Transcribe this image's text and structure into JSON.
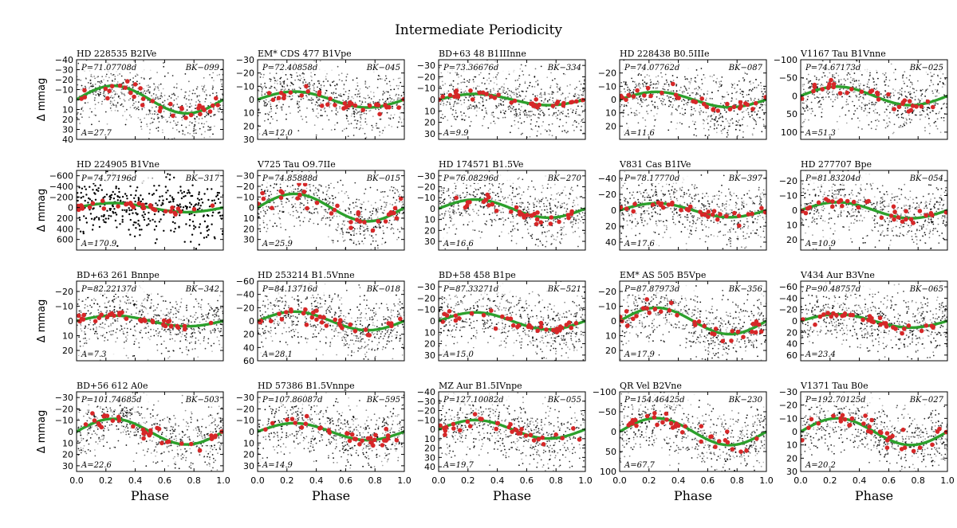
{
  "chart_data": {
    "type": "scatter",
    "title": "Intermediate Periodicity",
    "xlabel": "Phase",
    "ylabel": "Δ mmag",
    "xlim": [
      0.0,
      1.0
    ],
    "x_ticks": [
      "0.0",
      "0.2",
      "0.4",
      "0.6",
      "0.8",
      "1.0"
    ],
    "y_inverted": true,
    "grid": false,
    "colors": {
      "points": "#000000",
      "binned": "#d62728",
      "fit": "#2ca02c"
    },
    "panels": [
      {
        "name": "HD 228535  B2IVe",
        "period": "P=71.07708d",
        "bk": "BK−099",
        "amplitude_label": "A=27.7",
        "amplitude": 27.7,
        "ylim": [
          -40,
          40
        ],
        "yticks": [
          "−40",
          "−30",
          "−20",
          "−10",
          "0",
          "10",
          "20",
          "30",
          "40"
        ],
        "tick_values": [
          -40,
          -30,
          -20,
          -10,
          0,
          10,
          20,
          30,
          40
        ]
      },
      {
        "name": "EM* CDS 477  B1Vpe",
        "period": "P=72.40858d",
        "bk": "BK−045",
        "amplitude_label": "A=12.0",
        "amplitude": 12.0,
        "ylim": [
          -30,
          30
        ],
        "yticks": [
          "−30",
          "−20",
          "−10",
          "0",
          "10",
          "20",
          "30"
        ],
        "tick_values": [
          -30,
          -20,
          -10,
          0,
          10,
          20,
          30
        ]
      },
      {
        "name": "BD+63 48  B1IIInne",
        "period": "P=73.36676d",
        "bk": "BK−334",
        "amplitude_label": "A=9.9",
        "amplitude": 9.9,
        "ylim": [
          -35,
          35
        ],
        "yticks": [
          "−30",
          "−20",
          "−10",
          "0",
          "10",
          "20",
          "30"
        ],
        "tick_values": [
          -30,
          -20,
          -10,
          0,
          10,
          20,
          30
        ]
      },
      {
        "name": "HD 228438  B0.5IIIe",
        "period": "P=74.07762d",
        "bk": "BK−087",
        "amplitude_label": "A=11.6",
        "amplitude": 11.6,
        "ylim": [
          -30,
          30
        ],
        "yticks": [
          "−20",
          "−10",
          "0",
          "10",
          "20"
        ],
        "tick_values": [
          -20,
          -10,
          0,
          10,
          20
        ]
      },
      {
        "name": "V1167 Tau  B1Vnne",
        "period": "P=74.67173d",
        "bk": "BK−025",
        "amplitude_label": "A=51.3",
        "amplitude": 51.3,
        "ylim": [
          -100,
          120
        ],
        "yticks": [
          "−100",
          "−50",
          "0",
          "50",
          "100"
        ],
        "tick_values": [
          -100,
          -50,
          0,
          50,
          100
        ]
      },
      {
        "name": "HD 224905  B1Vne",
        "period": "P=74.77196d",
        "bk": "BK−317",
        "amplitude_label": "A=170.9",
        "amplitude": 170.9,
        "ylim": [
          -700,
          800
        ],
        "yticks": [
          "−600",
          "−400",
          "−200",
          "0",
          "200",
          "400",
          "600"
        ],
        "tick_values": [
          -600,
          -400,
          -200,
          0,
          200,
          400,
          600
        ]
      },
      {
        "name": "V725 Tau  O9.7IIe",
        "period": "P=74.85888d",
        "bk": "BK−015",
        "amplitude_label": "A=25.9",
        "amplitude": 25.9,
        "ylim": [
          -35,
          40
        ],
        "yticks": [
          "−30",
          "−20",
          "−10",
          "0",
          "10",
          "20",
          "30"
        ],
        "tick_values": [
          -30,
          -20,
          -10,
          0,
          10,
          20,
          30
        ]
      },
      {
        "name": "HD 174571  B1.5Ve",
        "period": "P=76.08296d",
        "bk": "BK−270",
        "amplitude_label": "A=16.6",
        "amplitude": 16.6,
        "ylim": [
          -35,
          38
        ],
        "yticks": [
          "−30",
          "−20",
          "−10",
          "0",
          "10",
          "20",
          "30"
        ],
        "tick_values": [
          -30,
          -20,
          -10,
          0,
          10,
          20,
          30
        ]
      },
      {
        "name": "V831 Cas  B1IVe",
        "period": "P=78.17770d",
        "bk": "BK−397",
        "amplitude_label": "A=17.6",
        "amplitude": 17.6,
        "ylim": [
          -50,
          50
        ],
        "yticks": [
          "−40",
          "−20",
          "0",
          "20",
          "40"
        ],
        "tick_values": [
          -40,
          -20,
          0,
          20,
          40
        ]
      },
      {
        "name": "HD 277707  Bpe",
        "period": "P=81.83204d",
        "bk": "BK−054",
        "amplitude_label": "A=10.9",
        "amplitude": 10.9,
        "ylim": [
          -27,
          27
        ],
        "yticks": [
          "−20",
          "−10",
          "0",
          "10",
          "20"
        ],
        "tick_values": [
          -20,
          -10,
          0,
          10,
          20
        ]
      },
      {
        "name": "BD+63 261  Bnnpe",
        "period": "P=82.22137d",
        "bk": "BK−342",
        "amplitude_label": "A=7.3",
        "amplitude": 7.3,
        "ylim": [
          -27,
          27
        ],
        "yticks": [
          "−20",
          "−10",
          "0",
          "10",
          "20"
        ],
        "tick_values": [
          -20,
          -10,
          0,
          10,
          20
        ]
      },
      {
        "name": "HD 253214  B1.5Vnne",
        "period": "P=84.13716d",
        "bk": "BK−018",
        "amplitude_label": "A=28.1",
        "amplitude": 28.1,
        "ylim": [
          -60,
          60
        ],
        "yticks": [
          "−60",
          "−40",
          "−20",
          "0",
          "20",
          "40",
          "60"
        ],
        "tick_values": [
          -60,
          -40,
          -20,
          0,
          20,
          40,
          60
        ]
      },
      {
        "name": "BD+58 458  B1pe",
        "period": "P=87.33271d",
        "bk": "BK−521",
        "amplitude_label": "A=15.0",
        "amplitude": 15.0,
        "ylim": [
          -35,
          35
        ],
        "yticks": [
          "−30",
          "−20",
          "−10",
          "0",
          "10",
          "20",
          "30"
        ],
        "tick_values": [
          -30,
          -20,
          -10,
          0,
          10,
          20,
          30
        ]
      },
      {
        "name": "EM* AS 505  B5Vpe",
        "period": "P=87.87973d",
        "bk": "BK−356",
        "amplitude_label": "A=17.9",
        "amplitude": 17.9,
        "ylim": [
          -27,
          27
        ],
        "yticks": [
          "−20",
          "−10",
          "0",
          "10",
          "20"
        ],
        "tick_values": [
          -20,
          -10,
          0,
          10,
          20
        ]
      },
      {
        "name": "V434 Aur  B3Vne",
        "period": "P=90.48757d",
        "bk": "BK−065",
        "amplitude_label": "A=23.4",
        "amplitude": 23.4,
        "ylim": [
          -70,
          70
        ],
        "yticks": [
          "−60",
          "−40",
          "−20",
          "0",
          "20",
          "40",
          "60"
        ],
        "tick_values": [
          -60,
          -40,
          -20,
          0,
          20,
          40,
          60
        ]
      },
      {
        "name": "BD+56 612  A0e",
        "period": "P=101.74685d",
        "bk": "BK−503",
        "amplitude_label": "A=22.6",
        "amplitude": 22.6,
        "ylim": [
          -35,
          35
        ],
        "yticks": [
          "−30",
          "−20",
          "−10",
          "0",
          "10",
          "20",
          "30"
        ],
        "tick_values": [
          -30,
          -20,
          -10,
          0,
          10,
          20,
          30
        ]
      },
      {
        "name": "HD 57386  B1.5Vnnpe",
        "period": "P=107.86087d",
        "bk": "BK−595",
        "amplitude_label": "A=14.9",
        "amplitude": 14.9,
        "ylim": [
          -35,
          35
        ],
        "yticks": [
          "−30",
          "−20",
          "−10",
          "0",
          "10",
          "20",
          "30"
        ],
        "tick_values": [
          -30,
          -20,
          -10,
          0,
          10,
          20,
          30
        ]
      },
      {
        "name": "MZ Aur  B1.5IVnpe",
        "period": "P=127.10082d",
        "bk": "BK−055",
        "amplitude_label": "A=19.7",
        "amplitude": 19.7,
        "ylim": [
          -40,
          45
        ],
        "yticks": [
          "−40",
          "−30",
          "−20",
          "−10",
          "0",
          "10",
          "20",
          "30",
          "40"
        ],
        "tick_values": [
          -40,
          -30,
          -20,
          -10,
          0,
          10,
          20,
          30,
          40
        ]
      },
      {
        "name": "QR Vel  B2Vne",
        "period": "P=154.46425d",
        "bk": "BK−230",
        "amplitude_label": "A=67.7",
        "amplitude": 67.7,
        "ylim": [
          -100,
          100
        ],
        "yticks": [
          "−100",
          "−50",
          "0",
          "50",
          "100"
        ],
        "tick_values": [
          -100,
          -50,
          0,
          50,
          100
        ]
      },
      {
        "name": "V1371 Tau  B0e",
        "period": "P=192.70125d",
        "bk": "BK−027",
        "amplitude_label": "A=20.2",
        "amplitude": 20.2,
        "ylim": [
          -30,
          30
        ],
        "yticks": [
          "−30",
          "−20",
          "−10",
          "0",
          "10",
          "20",
          "30"
        ],
        "tick_values": [
          -30,
          -20,
          -10,
          0,
          10,
          20,
          30
        ]
      }
    ]
  }
}
